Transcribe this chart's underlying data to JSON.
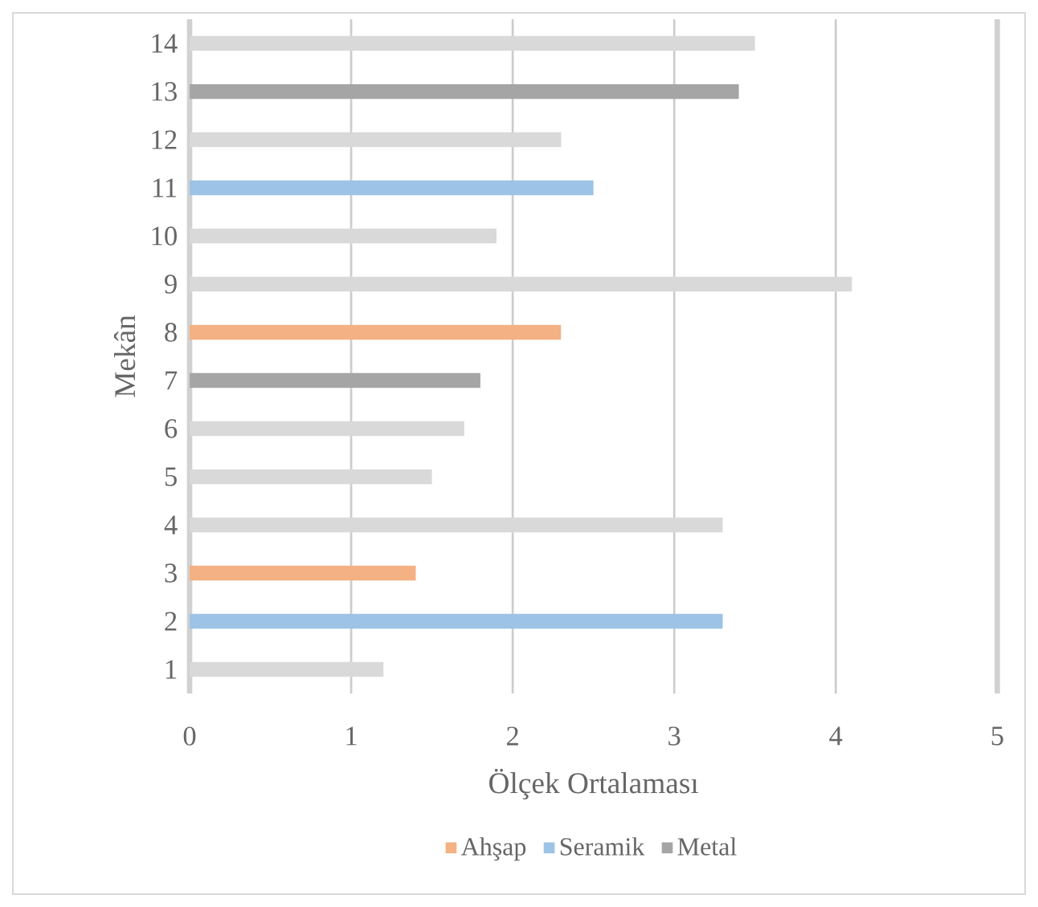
{
  "chart_data": {
    "type": "bar",
    "orientation": "horizontal",
    "xlabel": "Ölçek Ortalaması",
    "ylabel": "Mekân",
    "categories": [
      "14",
      "13",
      "12",
      "11",
      "10",
      "9",
      "8",
      "7",
      "6",
      "5",
      "4",
      "3",
      "2",
      "1"
    ],
    "series": [
      {
        "color": "#d9d9d9",
        "values": [
          3.5,
          null,
          2.3,
          null,
          1.9,
          4.1,
          null,
          null,
          1.7,
          1.5,
          3.3,
          null,
          null,
          1.2
        ]
      },
      {
        "name": "Ahşap",
        "color": "#f4b183",
        "values": [
          null,
          null,
          null,
          null,
          null,
          null,
          2.3,
          null,
          null,
          null,
          null,
          1.4,
          null,
          null
        ]
      },
      {
        "name": "Seramik",
        "color": "#9dc3e6",
        "values": [
          null,
          null,
          null,
          2.5,
          null,
          null,
          null,
          null,
          null,
          null,
          null,
          null,
          3.3,
          null
        ]
      },
      {
        "name": "Metal",
        "color": "#a5a5a5",
        "values": [
          null,
          3.4,
          null,
          null,
          null,
          null,
          null,
          1.8,
          null,
          null,
          null,
          null,
          null,
          null
        ]
      }
    ],
    "xlim": [
      0,
      5
    ],
    "xticks": [
      0,
      1,
      2,
      3,
      4,
      5
    ],
    "grid": "x",
    "legend": "bottom"
  }
}
